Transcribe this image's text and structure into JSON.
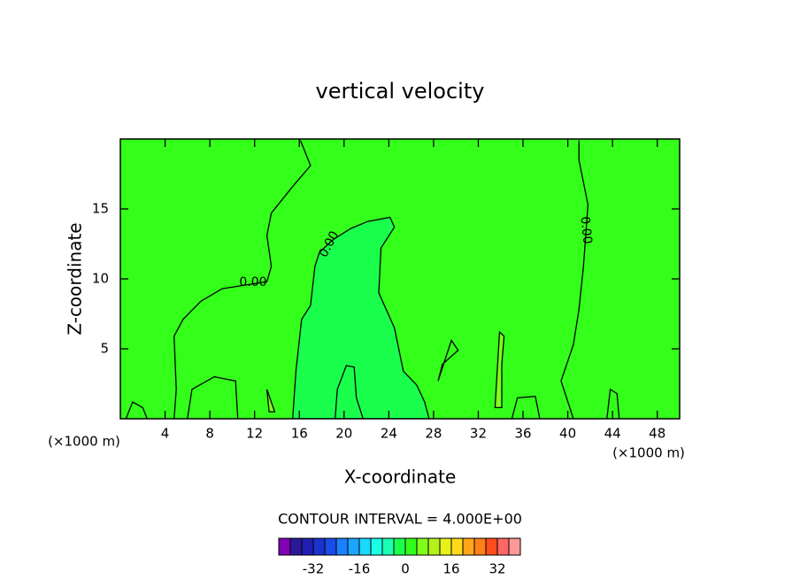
{
  "chart_data": {
    "type": "contour",
    "title": "vertical velocity",
    "xlabel": "X-coordinate",
    "ylabel": "Z-coordinate",
    "x_unit_label": "(×1000 m)",
    "xlim": [
      0,
      50
    ],
    "ylim": [
      0,
      20
    ],
    "xticks": [
      4,
      8,
      12,
      16,
      20,
      24,
      28,
      32,
      36,
      40,
      44,
      48
    ],
    "yticks": [
      5,
      10,
      15
    ],
    "background_color": "#33ff1a",
    "fields": [
      {
        "color": "#1aff4c",
        "label": "0.00",
        "x": [
          15.4,
          15.7,
          16.2,
          17.0,
          17.4,
          17.8,
          19.0,
          20.6,
          22.1,
          24.1,
          24.5,
          23.3,
          23.1,
          24.5,
          25.3,
          26.5,
          27.2,
          27.6
        ],
        "z": [
          0,
          3.4,
          7.1,
          8.1,
          10.9,
          11.9,
          12.8,
          13.6,
          14.1,
          14.4,
          13.7,
          12.2,
          9.0,
          6.5,
          3.4,
          2.4,
          1.2,
          0
        ]
      },
      {
        "color": "#80ff1a",
        "x": [
          33.5,
          33.9,
          34.3,
          34.1,
          34.1
        ],
        "z": [
          0.8,
          6.2,
          5.9,
          3.9,
          0.8
        ]
      },
      {
        "color": "#80ff1a",
        "x": [
          13.1,
          13.8,
          13.3
        ],
        "z": [
          2.1,
          0.5,
          0.5
        ]
      }
    ],
    "contours": [
      {
        "label": "0.00",
        "x": [
          4.8,
          5.0,
          4.8,
          5.6,
          7.2,
          9.1,
          13.1,
          13.5,
          13.1,
          13.5,
          15.4,
          17.0,
          16.2,
          16.1
        ],
        "z": [
          0,
          2.1,
          5.9,
          7.1,
          8.4,
          9.3,
          9.8,
          10.9,
          13.1,
          14.7,
          16.6,
          18.1,
          19.7,
          19.9
        ]
      },
      {
        "label": "0.00",
        "x": [
          41.0,
          41.0,
          41.8,
          41.4,
          41.0,
          40.5,
          39.4,
          40.5
        ],
        "z": [
          19.9,
          18.5,
          15.3,
          10.9,
          7.8,
          5.3,
          2.7,
          0
        ]
      },
      {
        "x": [
          6.0,
          6.4,
          8.4,
          10.3,
          10.5
        ],
        "z": [
          0,
          2.1,
          3.0,
          2.7,
          0
        ]
      },
      {
        "x": [
          19.2,
          19.4,
          20.2,
          20.9,
          21.1,
          21.7
        ],
        "z": [
          0,
          2.1,
          3.8,
          3.7,
          1.5,
          0
        ]
      },
      {
        "x": [
          28.4,
          29.6,
          30.2,
          28.8,
          28.4
        ],
        "z": [
          2.7,
          5.6,
          4.9,
          3.9,
          2.7
        ]
      },
      {
        "x": [
          0.5,
          1.1,
          2.0,
          2.4
        ],
        "z": [
          0,
          1.2,
          0.8,
          0
        ]
      },
      {
        "x": [
          35.0,
          35.5,
          37.1,
          37.5
        ],
        "z": [
          0,
          1.5,
          1.6,
          0
        ]
      },
      {
        "x": [
          43.5,
          43.8,
          44.4,
          44.6
        ],
        "z": [
          0,
          2.1,
          1.8,
          0
        ]
      }
    ],
    "contour_interval_label": "CONTOUR INTERVAL = 4.000E+00",
    "colorbar": {
      "lim": [
        -44,
        40
      ],
      "ticks": [
        -32,
        -16,
        0,
        16,
        32
      ],
      "colors": [
        "#8000b3",
        "#2a1a99",
        "#1f1fb3",
        "#1a33cc",
        "#1a4ce6",
        "#1a80ff",
        "#1aa6ff",
        "#1ad9ff",
        "#1affe6",
        "#1affb3",
        "#1aff4c",
        "#33ff1a",
        "#80ff1a",
        "#b3f21a",
        "#e6f21a",
        "#ffd91a",
        "#ffa61a",
        "#ff7f1a",
        "#ff4c1a",
        "#ff6666",
        "#ff9999"
      ]
    }
  }
}
